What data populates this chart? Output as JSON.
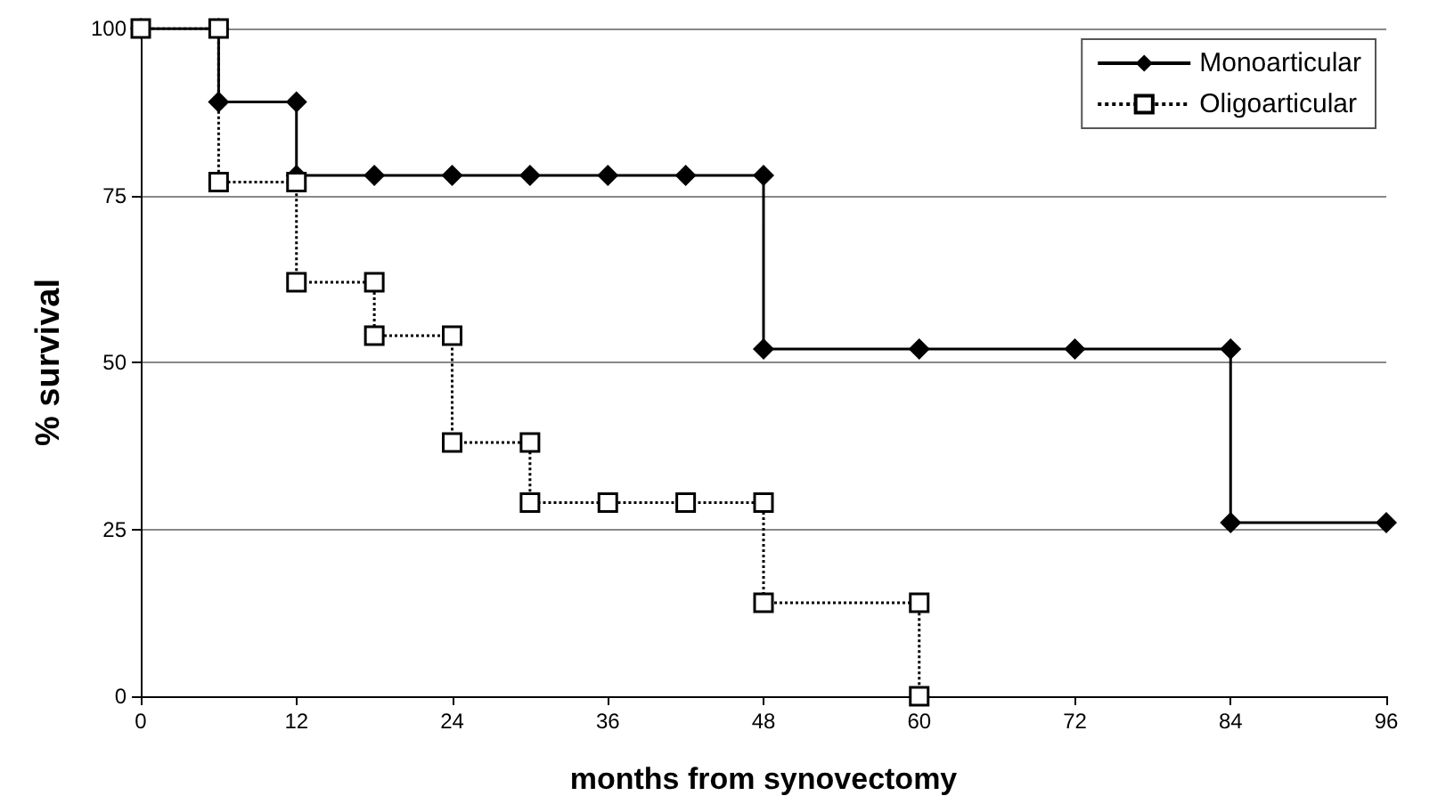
{
  "chart_data": {
    "type": "line",
    "xlabel": "months from synovectomy",
    "ylabel": "% survival",
    "series": [
      {
        "name": "Monoarticular",
        "color": "#000000",
        "marker": "diamond",
        "line_style": "solid",
        "x": [
          0,
          6,
          6,
          12,
          12,
          18,
          24,
          30,
          36,
          42,
          48,
          48,
          60,
          72,
          84,
          84,
          96
        ],
        "values": [
          100,
          100,
          89,
          89,
          78,
          78,
          78,
          78,
          78,
          78,
          78,
          52,
          52,
          52,
          52,
          26,
          26
        ]
      },
      {
        "name": "Oligoarticular",
        "color": "#000000",
        "marker": "square",
        "line_style": "dotted",
        "x": [
          0,
          6,
          6,
          12,
          12,
          18,
          18,
          24,
          24,
          30,
          30,
          36,
          42,
          48,
          48,
          60,
          60
        ],
        "values": [
          100,
          100,
          77,
          77,
          62,
          62,
          54,
          54,
          38,
          38,
          29,
          29,
          29,
          29,
          14,
          14,
          0
        ]
      }
    ],
    "xlim": [
      0,
      96
    ],
    "xticks": [
      0,
      12,
      24,
      36,
      48,
      60,
      72,
      84,
      96
    ],
    "ylim": [
      0,
      100
    ],
    "yticks": [
      0,
      25,
      50,
      75,
      100
    ],
    "grid": "y",
    "legend": "top right"
  }
}
